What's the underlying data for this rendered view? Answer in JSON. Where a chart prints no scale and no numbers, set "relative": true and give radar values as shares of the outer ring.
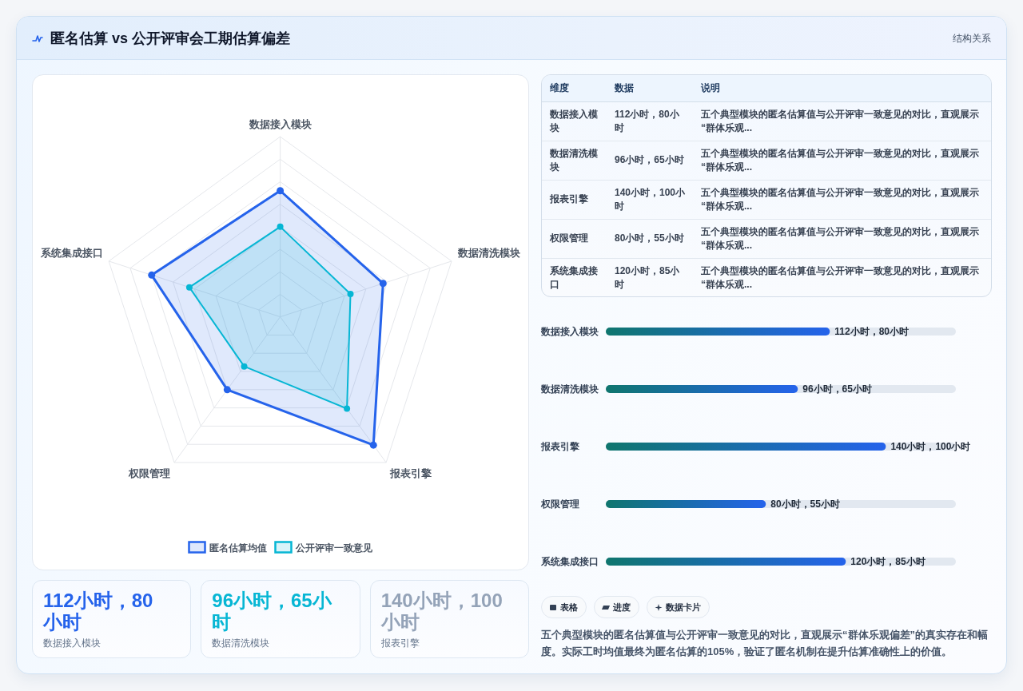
{
  "chart_data": [
    {
      "type": "other",
      "title": "匿名估算 vs 公开评审会工期估算偏差",
      "subtitle": "结构关系"
    },
    {
      "type": "radar",
      "categories": [
        "数据接入模块",
        "数据清洗模块",
        "报表引擎",
        "权限管理",
        "系统集成接口"
      ],
      "relative": true,
      "grid": true,
      "marker": "circle",
      "legend": "bottom",
      "series": [
        {
          "name": "匿名估算均值",
          "color": "#2563eb",
          "values": [
            0.7,
            0.6,
            0.88,
            0.5,
            0.75
          ]
        },
        {
          "name": "公开评审一致意见",
          "color": "#06b6d4",
          "values": [
            0.5,
            0.41,
            0.63,
            0.34,
            0.53
          ]
        }
      ]
    },
    {
      "type": "other",
      "categories": [
        "维度",
        "数据",
        "说明"
      ],
      "cell_labels": [
        [
          "数据接入模块",
          "112小时，80小时",
          "五个典型模块的匿名估算值与公开评审一致意见的对比，直观展示“群体乐观..."
        ],
        [
          "数据清洗模块",
          "96小时，65小时",
          "五个典型模块的匿名估算值与公开评审一致意见的对比，直观展示“群体乐观..."
        ],
        [
          "报表引擎",
          "140小时，100小时",
          "五个典型模块的匿名估算值与公开评审一致意见的对比，直观展示“群体乐观..."
        ],
        [
          "权限管理",
          "80小时，55小时",
          "五个典型模块的匿名估算值与公开评审一致意见的对比，直观展示“群体乐观..."
        ],
        [
          "系统集成接口",
          "120小时，85小时",
          "五个典型模块的匿名估算值与公开评审一致意见的对比，直观展示“群体乐观..."
        ]
      ]
    },
    {
      "type": "bar",
      "orientation": "horizontal",
      "categories": [
        "数据接入模块",
        "数据清洗模块",
        "报表引擎",
        "权限管理",
        "系统集成接口"
      ],
      "values": [
        112,
        96,
        140,
        80,
        120
      ],
      "value_labels": [
        "112小时，80小时",
        "96小时，65小时",
        "140小时，100小时",
        "80小时，55小时",
        "120小时，85小时"
      ],
      "color": "#2563eb"
    },
    {
      "type": "other",
      "categories": [
        "数据接入模块",
        "数据清洗模块",
        "报表引擎"
      ],
      "value_labels": [
        "112小时，80小时",
        "96小时，65小时",
        "140小时，100小时"
      ]
    },
    {
      "type": "other",
      "annotations": [
        "表格",
        "进度",
        "数据卡片",
        "五个典型模块的匿名估算值与公开评审一致意见的对比，直观展示“群体乐观偏差”的真实存在和幅度。实际工时均值最终为匿名估算的105%，验证了匿名机制在提升估算准确性上的价值。"
      ]
    }
  ]
}
